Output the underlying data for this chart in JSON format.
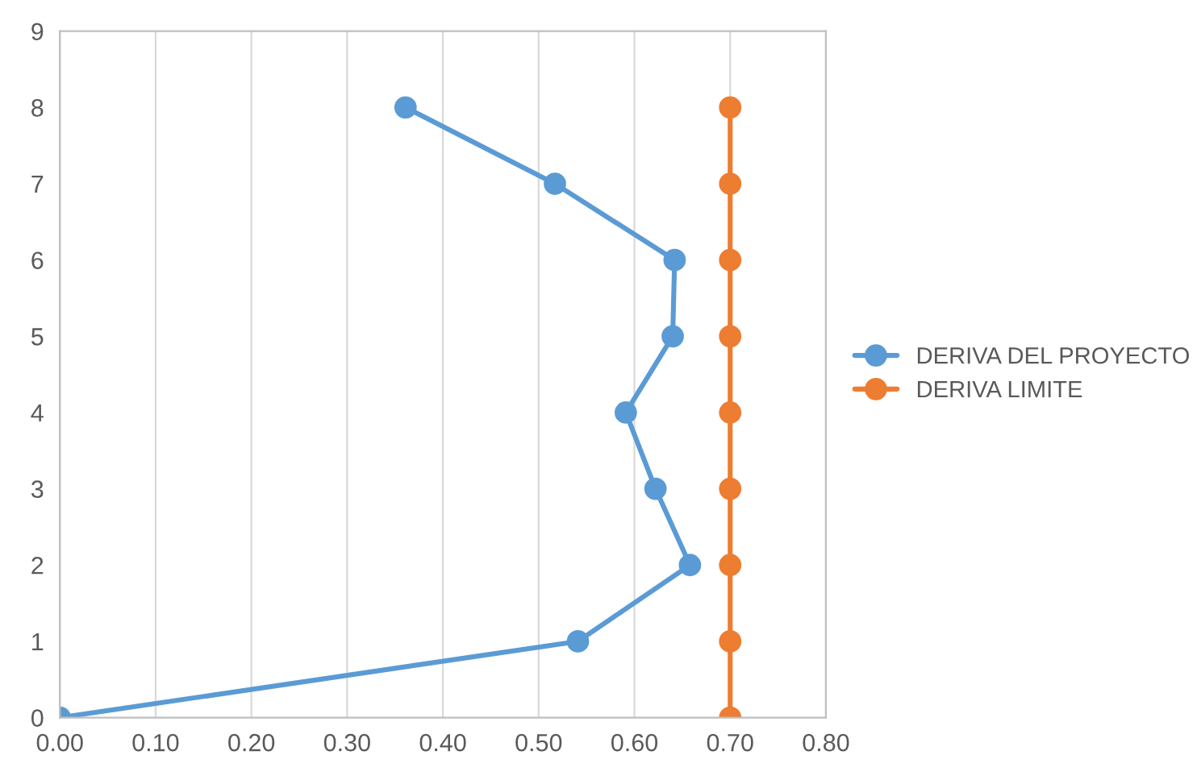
{
  "chart_data": {
    "type": "line",
    "series": [
      {
        "name": "DERIVA DEL PROYECTO",
        "color": "#5b9bd5",
        "x": [
          0.0,
          0.541,
          0.658,
          0.622,
          0.591,
          0.64,
          0.642,
          0.517,
          0.361
        ],
        "values": [
          0,
          1,
          2,
          3,
          4,
          5,
          6,
          7,
          8
        ]
      },
      {
        "name": "DERIVA LIMITE",
        "color": "#ed7d31",
        "x": [
          0.7,
          0.7,
          0.7,
          0.7,
          0.7,
          0.7,
          0.7,
          0.7,
          0.7
        ],
        "values": [
          0,
          1,
          2,
          3,
          4,
          5,
          6,
          7,
          8
        ]
      }
    ],
    "xlim": [
      0,
      0.8
    ],
    "xticks": [
      {
        "value": 0,
        "label": "0.00"
      },
      {
        "value": 0.1,
        "label": "0.10"
      },
      {
        "value": 0.2,
        "label": "0.20"
      },
      {
        "value": 0.3,
        "label": "0.30"
      },
      {
        "value": 0.4,
        "label": "0.40"
      },
      {
        "value": 0.5,
        "label": "0.50"
      },
      {
        "value": 0.6,
        "label": "0.60"
      },
      {
        "value": 0.7,
        "label": "0.70"
      },
      {
        "value": 0.8,
        "label": "0.80"
      }
    ],
    "ylim": [
      0,
      9
    ],
    "yticks": [
      0,
      1,
      2,
      3,
      4,
      5,
      6,
      7,
      8,
      9
    ],
    "grid": "x",
    "legend": "right",
    "marker": "circle",
    "line_style": "solid"
  }
}
